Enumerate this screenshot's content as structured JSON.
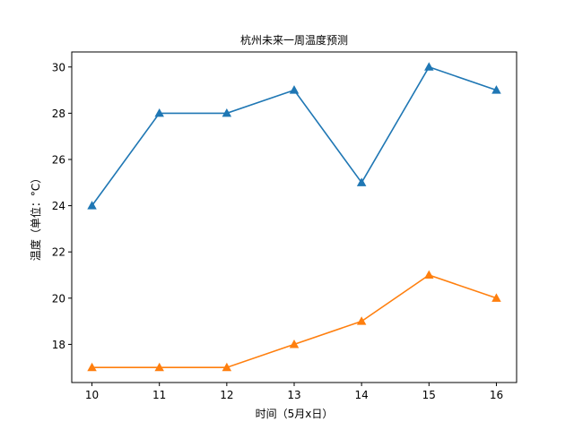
{
  "chart_data": {
    "type": "line",
    "title": "杭州未来一周温度预测",
    "xlabel": "时间（5月x日）",
    "ylabel": "温度（单位：°C）",
    "x": [
      10,
      11,
      12,
      13,
      14,
      15,
      16
    ],
    "xlim": [
      9.7,
      16.3
    ],
    "ylim": [
      16.35,
      30.65
    ],
    "yticks": [
      18,
      20,
      22,
      24,
      26,
      28,
      30
    ],
    "grid": false,
    "marker": "triangle",
    "series": [
      {
        "values": [
          24,
          28,
          28,
          29,
          25,
          30,
          29
        ],
        "color": "#1f77b4"
      },
      {
        "values": [
          17,
          17,
          17,
          18,
          19,
          21,
          20
        ],
        "color": "#ff7f0e"
      }
    ]
  }
}
